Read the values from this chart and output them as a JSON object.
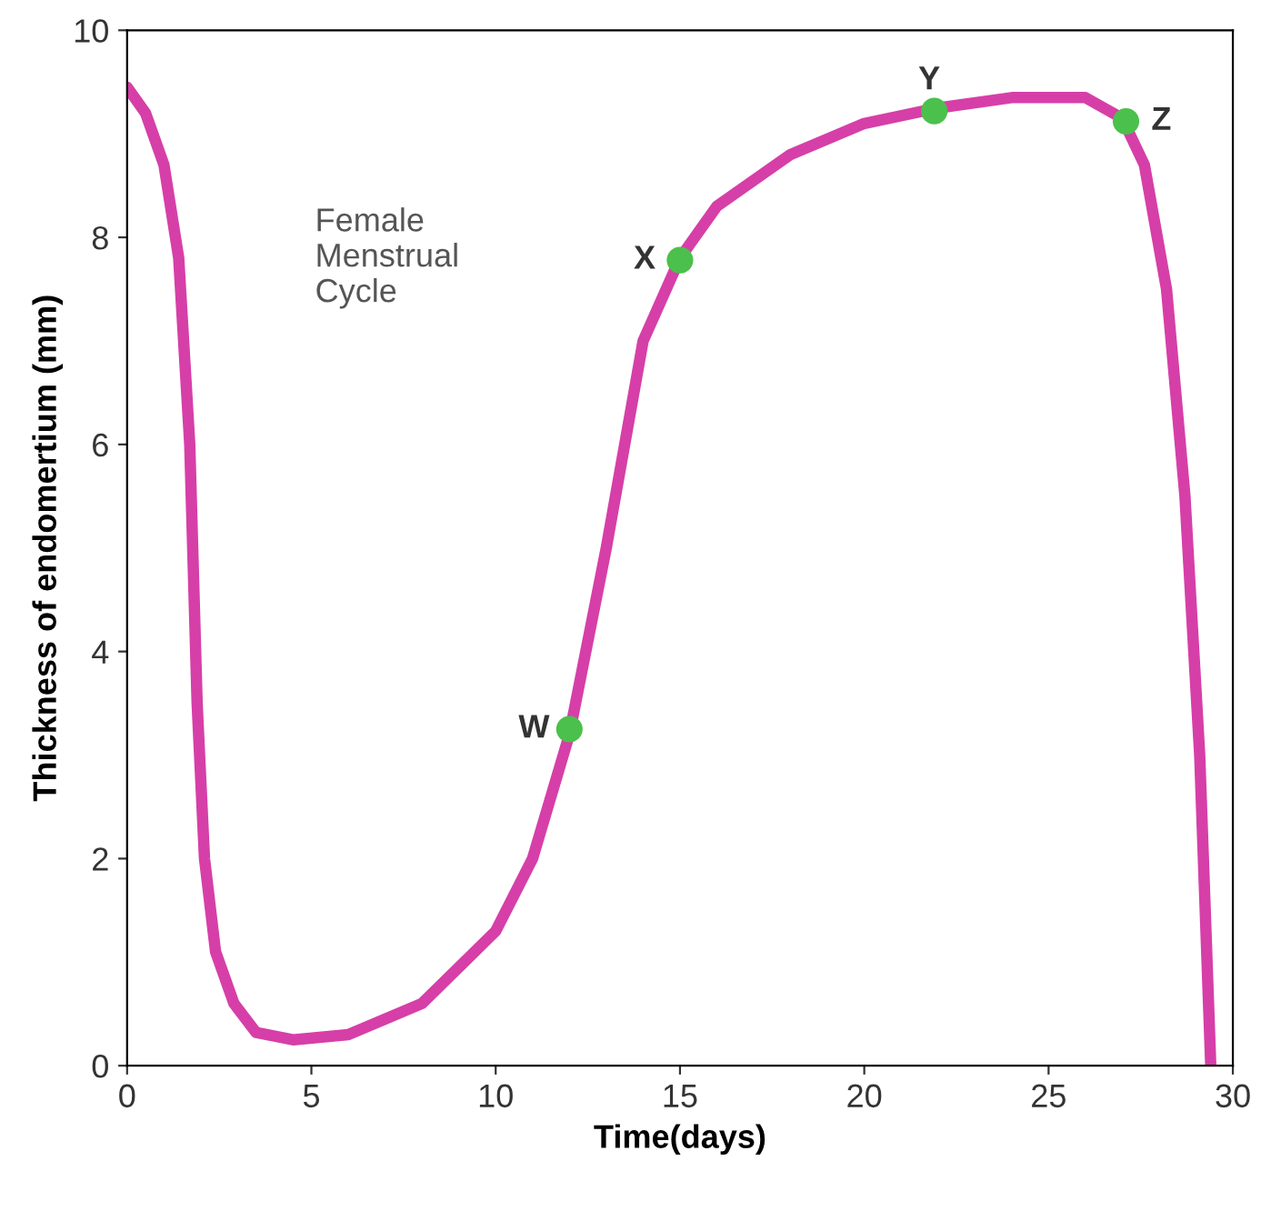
{
  "chart_data": {
    "type": "line",
    "xlabel": "Time(days)",
    "ylabel": "Thickness of endomertium (mm)",
    "xlim": [
      0,
      30
    ],
    "ylim": [
      0,
      10
    ],
    "xticks": [
      0,
      5,
      10,
      15,
      20,
      25,
      30
    ],
    "yticks": [
      0,
      2,
      4,
      6,
      8,
      10
    ],
    "grid": false,
    "legend": false,
    "series": [
      {
        "color": "#d63fa8",
        "x": [
          0,
          0.5,
          1.0,
          1.4,
          1.7,
          1.9,
          2.1,
          2.4,
          2.9,
          3.5,
          4.5,
          6,
          8,
          10,
          11,
          12,
          13,
          14,
          15,
          16,
          18,
          20,
          22,
          24,
          26,
          27,
          27.6,
          28.2,
          28.7,
          29.1,
          29.4
        ],
        "values": [
          9.45,
          9.2,
          8.7,
          7.8,
          6.0,
          3.5,
          2.0,
          1.1,
          0.6,
          0.32,
          0.25,
          0.3,
          0.6,
          1.3,
          2.0,
          3.2,
          5.0,
          7.0,
          7.8,
          8.3,
          8.8,
          9.1,
          9.25,
          9.35,
          9.35,
          9.15,
          8.7,
          7.5,
          5.5,
          3.0,
          0
        ]
      },
      {
        "type": "scatter",
        "color": "#4cc04c",
        "marker": "circle",
        "x": [
          12,
          15,
          21.9,
          27.1
        ],
        "values": [
          3.25,
          7.78,
          9.22,
          9.12
        ]
      }
    ],
    "annotations": [
      {
        "text": "W",
        "x": 12,
        "y": 3.25
      },
      {
        "text": "X",
        "x": 15,
        "y": 7.78
      },
      {
        "text": "Y",
        "x": 21.9,
        "y": 9.22
      },
      {
        "text": "Z",
        "x": 27.1,
        "y": 9.12
      },
      "Female\nMenstrual\nCycle"
    ]
  }
}
